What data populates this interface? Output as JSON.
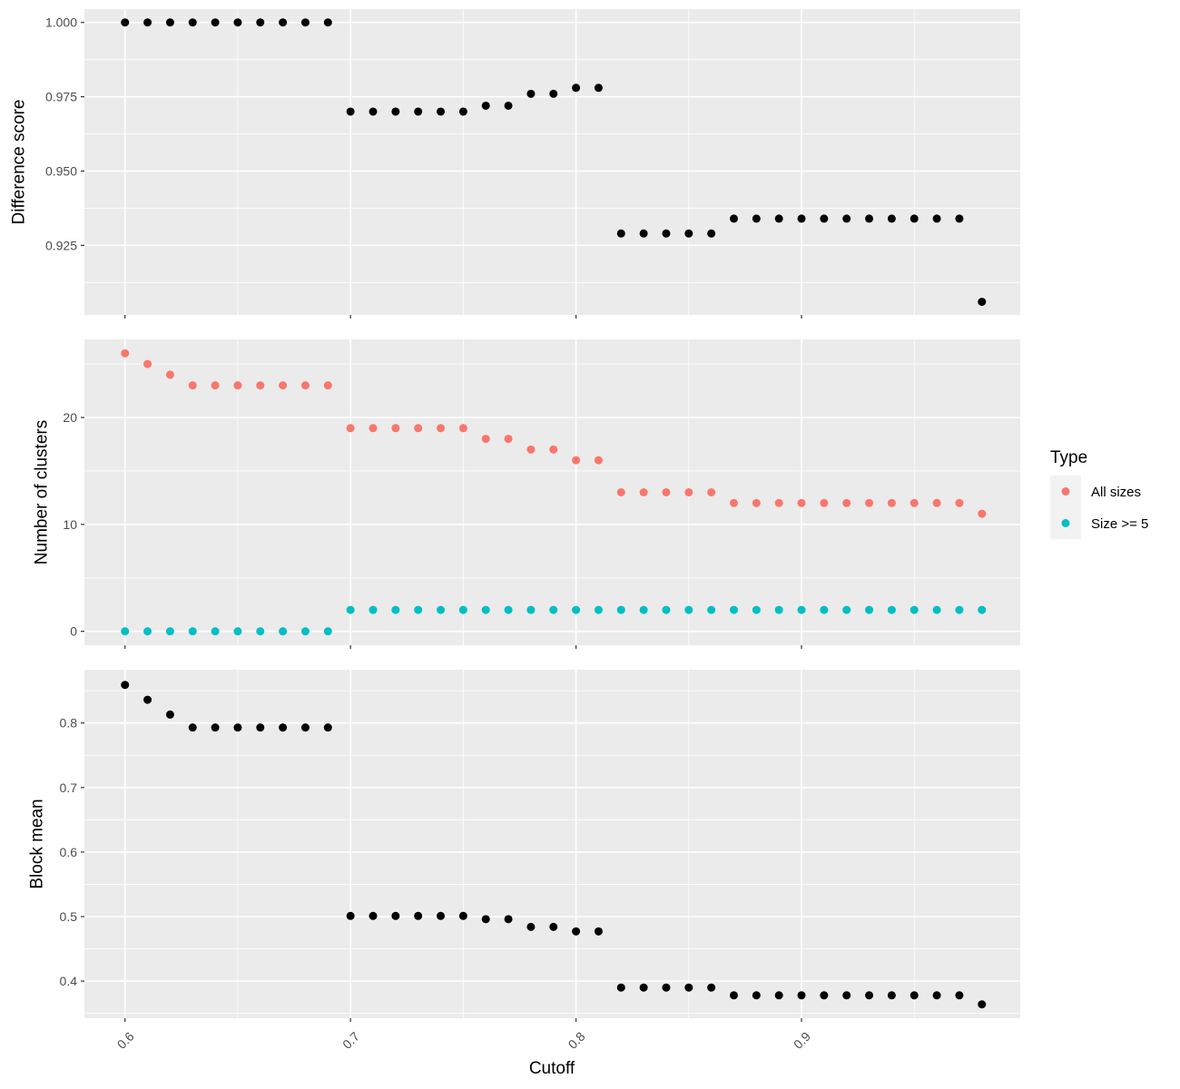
{
  "chart_data": {
    "type": "scatter",
    "x_axis": {
      "label": "Cutoff",
      "range": [
        0.582,
        0.997
      ],
      "ticks": [
        0.6,
        0.7,
        0.8,
        0.9
      ],
      "tick_labels": [
        "0.6",
        "0.7",
        "0.8",
        "0.9"
      ]
    },
    "x": [
      0.6,
      0.61,
      0.62,
      0.63,
      0.64,
      0.65,
      0.66,
      0.67,
      0.68,
      0.69,
      0.7,
      0.71,
      0.72,
      0.73,
      0.74,
      0.75,
      0.76,
      0.77,
      0.78,
      0.79,
      0.8,
      0.81,
      0.82,
      0.83,
      0.84,
      0.85,
      0.86,
      0.87,
      0.88,
      0.89,
      0.9,
      0.91,
      0.92,
      0.93,
      0.94,
      0.95,
      0.96,
      0.97,
      0.98
    ],
    "panels": [
      {
        "ylabel": "Difference score",
        "ylim": [
          0.9016,
          1.0045
        ],
        "yticks": [
          0.925,
          0.95,
          0.975,
          1.0
        ],
        "ytick_labels": [
          "0.925",
          "0.950",
          "0.975",
          "1.000"
        ],
        "series": [
          {
            "color": "#000000",
            "values": [
              1.0,
              1.0,
              1.0,
              1.0,
              1.0,
              1.0,
              1.0,
              1.0,
              1.0,
              1.0,
              0.97,
              0.97,
              0.97,
              0.97,
              0.97,
              0.97,
              0.972,
              0.972,
              0.976,
              0.976,
              0.978,
              0.978,
              0.929,
              0.929,
              0.929,
              0.929,
              0.929,
              0.934,
              0.934,
              0.934,
              0.934,
              0.934,
              0.934,
              0.934,
              0.934,
              0.934,
              0.934,
              0.934,
              0.906
            ]
          }
        ]
      },
      {
        "ylabel": "Number of clusters",
        "ylim": [
          -1.3,
          27.3
        ],
        "yticks": [
          0,
          10,
          20
        ],
        "ytick_labels": [
          "0",
          "10",
          "20"
        ],
        "series": [
          {
            "name": "All sizes",
            "color": "#F8766D",
            "values": [
              26,
              25,
              24,
              23,
              23,
              23,
              23,
              23,
              23,
              23,
              19,
              19,
              19,
              19,
              19,
              19,
              18,
              18,
              17,
              17,
              16,
              16,
              13,
              13,
              13,
              13,
              13,
              12,
              12,
              12,
              12,
              12,
              12,
              12,
              12,
              12,
              12,
              12,
              11
            ]
          },
          {
            "name": "Size >= 5",
            "color": "#00BFC4",
            "values": [
              0,
              0,
              0,
              0,
              0,
              0,
              0,
              0,
              0,
              0,
              2,
              2,
              2,
              2,
              2,
              2,
              2,
              2,
              2,
              2,
              2,
              2,
              2,
              2,
              2,
              2,
              2,
              2,
              2,
              2,
              2,
              2,
              2,
              2,
              2,
              2,
              2,
              2,
              2
            ]
          }
        ]
      },
      {
        "ylabel": "Block mean",
        "ylim": [
          0.3425,
          0.8825
        ],
        "yticks": [
          0.4,
          0.5,
          0.6,
          0.7,
          0.8
        ],
        "ytick_labels": [
          "0.4",
          "0.5",
          "0.6",
          "0.7",
          "0.8"
        ],
        "series": [
          {
            "color": "#000000",
            "values": [
              0.859,
              0.836,
              0.813,
              0.793,
              0.793,
              0.793,
              0.793,
              0.793,
              0.793,
              0.793,
              0.501,
              0.501,
              0.501,
              0.501,
              0.501,
              0.501,
              0.496,
              0.496,
              0.484,
              0.484,
              0.477,
              0.477,
              0.39,
              0.39,
              0.39,
              0.39,
              0.39,
              0.378,
              0.378,
              0.378,
              0.378,
              0.378,
              0.378,
              0.378,
              0.378,
              0.378,
              0.378,
              0.378,
              0.364
            ]
          }
        ]
      }
    ],
    "legend": {
      "title": "Type",
      "placement": "right",
      "entries": [
        {
          "label": "All sizes",
          "color": "#F8766D"
        },
        {
          "label": "Size >= 5",
          "color": "#00BFC4"
        }
      ]
    },
    "panel_background": "#EBEBEB",
    "grid_color": "#FFFFFF",
    "grid": true
  }
}
